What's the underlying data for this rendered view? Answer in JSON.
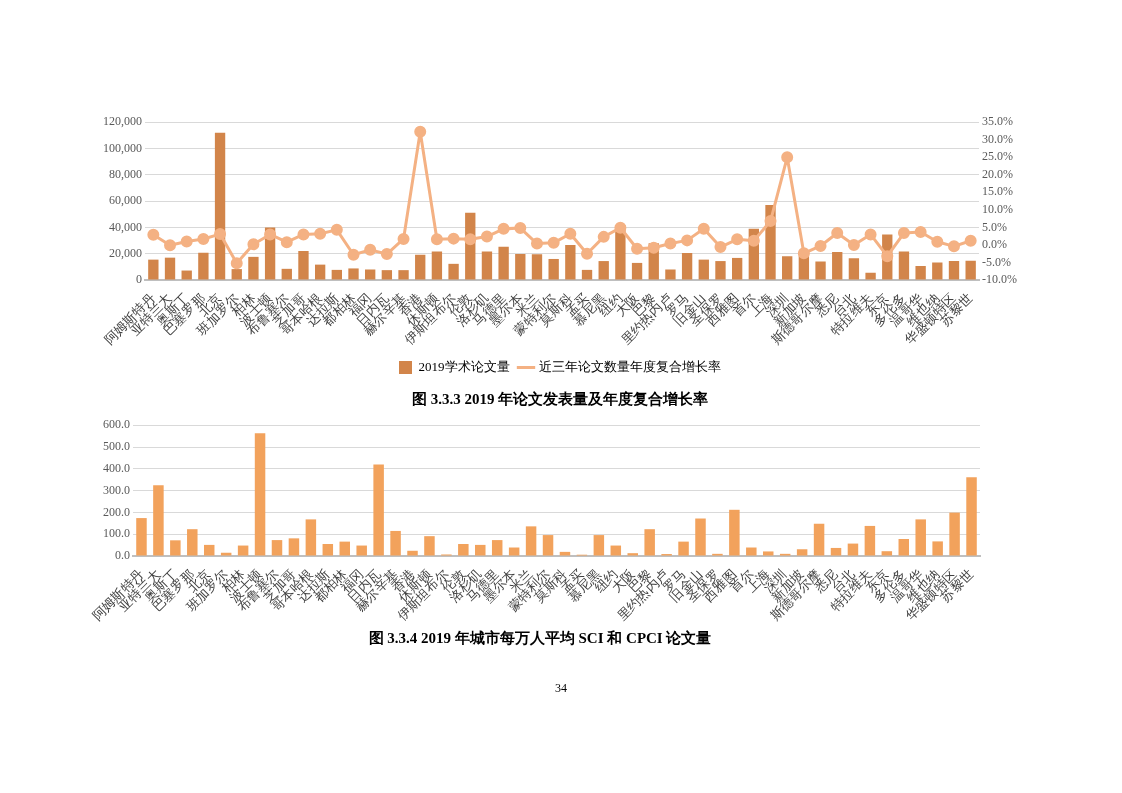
{
  "chart_data": [
    {
      "type": "bar",
      "title": "图 3.3.3 2019 年论文发表量及年度复合增长率",
      "categories": [
        "阿姆斯特丹",
        "亚特兰大",
        "奥斯丁",
        "巴塞罗那",
        "北京",
        "班加罗尔",
        "柏林",
        "波士顿",
        "布鲁塞尔",
        "芝加哥",
        "哥本哈根",
        "达拉斯",
        "都柏林",
        "福冈",
        "日内瓦",
        "赫尔辛基",
        "香港",
        "休斯顿",
        "伊斯坦布尔",
        "伦敦",
        "洛杉矶",
        "马德里",
        "墨尔本",
        "米兰",
        "蒙特利尔",
        "莫斯科",
        "孟买",
        "慕尼黑",
        "纽约",
        "大阪",
        "巴黎",
        "里约热内卢",
        "罗马",
        "旧金山",
        "圣保罗",
        "西雅图",
        "首尔",
        "上海",
        "深圳",
        "新加坡",
        "斯德哥尔摩",
        "悉尼",
        "台北",
        "特拉维夫",
        "东京",
        "多伦多",
        "温哥华",
        "维也纳",
        "华盛顿特区",
        "苏黎世"
      ],
      "series": [
        {
          "name": "2019学术论文量",
          "color": "#d2854a",
          "values": [
            15500,
            17000,
            7200,
            20800,
            112000,
            8300,
            17600,
            40000,
            8500,
            22000,
            11700,
            7700,
            8800,
            8000,
            7500,
            7500,
            19200,
            21600,
            12300,
            51200,
            21600,
            25300,
            19700,
            19500,
            16000,
            26700,
            7700,
            14400,
            41600,
            13000,
            28000,
            8000,
            20500,
            15500,
            14400,
            16800,
            39000,
            57000,
            18000,
            18700,
            14000,
            21300,
            16500,
            5600,
            34700,
            21600,
            10700,
            13300,
            14400,
            14700
          ]
        },
        {
          "name": "近三年论文数量年度复合增长率",
          "type": "line",
          "axis": "y2",
          "color": "#f4b183",
          "values": [
            2.9,
            -0.1,
            1.0,
            1.7,
            3.1,
            -5.2,
            0.2,
            3.0,
            0.8,
            3.0,
            3.2,
            4.3,
            -2.8,
            -1.4,
            -2.6,
            1.7,
            32.3,
            1.6,
            1.8,
            1.6,
            2.4,
            4.6,
            4.8,
            0.4,
            0.6,
            3.2,
            -2.5,
            2.3,
            4.9,
            -1.1,
            -0.8,
            0.4,
            1.3,
            4.6,
            -0.6,
            1.6,
            1.2,
            6.8,
            25.0,
            -2.4,
            -0.3,
            3.4,
            0.0,
            3.0,
            -3.2,
            3.4,
            3.7,
            0.9,
            -0.4,
            1.2
          ]
        }
      ],
      "ylim": [
        0,
        120000
      ],
      "yticks": [
        {
          "value": 0,
          "label": "0"
        },
        {
          "value": 20000,
          "label": "20,000"
        },
        {
          "value": 40000,
          "label": "40,000"
        },
        {
          "value": 60000,
          "label": "60,000"
        },
        {
          "value": 80000,
          "label": "80,000"
        },
        {
          "value": 100000,
          "label": "100,000"
        },
        {
          "value": 120000,
          "label": "120,000"
        }
      ],
      "y2lim": [
        -10,
        35
      ],
      "y2ticks": [
        {
          "value": -10,
          "label": "-10.0%"
        },
        {
          "value": -5,
          "label": "-5.0%"
        },
        {
          "value": 0,
          "label": "0.0%"
        },
        {
          "value": 5,
          "label": "5.0%"
        },
        {
          "value": 10,
          "label": "10.0%"
        },
        {
          "value": 15,
          "label": "15.0%"
        },
        {
          "value": 20,
          "label": "20.0%"
        },
        {
          "value": 25,
          "label": "25.0%"
        },
        {
          "value": 30,
          "label": "30.0%"
        },
        {
          "value": 35,
          "label": "35.0%"
        }
      ],
      "grid": "y",
      "legend": "bottom",
      "marker": "circle"
    },
    {
      "type": "bar",
      "title": "图 3.3.4 2019 年城市每万人平均 SCI 和 CPCI 论文量",
      "categories": [
        "阿姆斯特丹",
        "亚特兰大",
        "奥斯丁",
        "巴塞罗那",
        "北京",
        "班加罗尔",
        "柏林",
        "波士顿",
        "布鲁塞尔",
        "芝加哥",
        "哥本哈根",
        "达拉斯",
        "都柏林",
        "福冈",
        "日内瓦",
        "赫尔辛基",
        "香港",
        "休斯顿",
        "伊斯坦布尔",
        "伦敦",
        "洛杉矶",
        "马德里",
        "墨尔本",
        "米兰",
        "蒙特利尔",
        "莫斯科",
        "孟买",
        "慕尼黑",
        "纽约",
        "大阪",
        "巴黎",
        "里约热内卢",
        "罗马",
        "旧金山",
        "圣保罗",
        "西雅图",
        "首尔",
        "上海",
        "深圳",
        "新加坡",
        "斯德哥尔摩",
        "悉尼",
        "台北",
        "特拉维夫",
        "东京",
        "多伦多",
        "温哥华",
        "维也纳",
        "华盛顿特区",
        "苏黎世"
      ],
      "color": "#f2a25c",
      "values": [
        174,
        325,
        72,
        123,
        51,
        15,
        48,
        563,
        73,
        81,
        168,
        55,
        66,
        48,
        420,
        115,
        24,
        91,
        7,
        55,
        51,
        73,
        39,
        136,
        96,
        19,
        6,
        96,
        48,
        13,
        123,
        9,
        66,
        172,
        10,
        212,
        39,
        21,
        10,
        31,
        148,
        37,
        57,
        138,
        22,
        78,
        168,
        67,
        199,
        361
      ],
      "ylim": [
        0,
        600
      ],
      "yticks": [
        {
          "value": 0,
          "label": "0.0"
        },
        {
          "value": 100,
          "label": "100.0"
        },
        {
          "value": 200,
          "label": "200.0"
        },
        {
          "value": 300,
          "label": "300.0"
        },
        {
          "value": 400,
          "label": "400.0"
        },
        {
          "value": 500,
          "label": "500.0"
        },
        {
          "value": 600,
          "label": "600.0"
        }
      ],
      "grid": "y",
      "annotations": [
        "34"
      ]
    }
  ]
}
